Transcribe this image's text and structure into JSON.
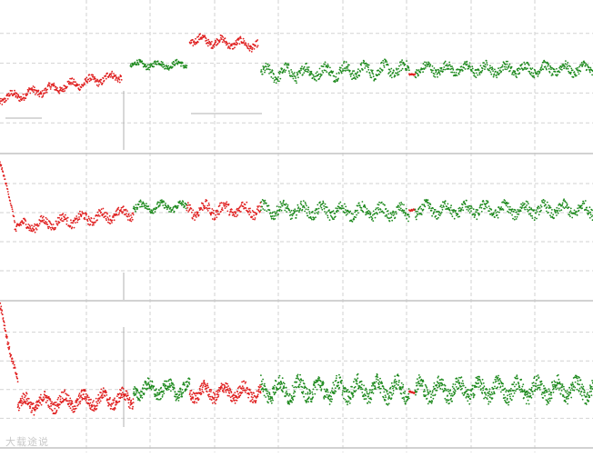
{
  "watermark": "大载途说",
  "colors": {
    "background": "#ffffff",
    "grid": "#d2d2d2",
    "panel_border": "#c4c4c4",
    "guide_line": "#b0b0b0",
    "red": "#e02020",
    "green": "#1e8a1e"
  },
  "chart_data": [
    {
      "type": "scatter",
      "title": "",
      "x_domain": [
        0,
        100
      ],
      "y_domain": [
        0,
        100
      ],
      "grid": true,
      "segments": [
        {
          "color": "red",
          "x": [
            0,
            20.5
          ],
          "start": 36,
          "end": 52,
          "noise": 4
        },
        {
          "color": "green",
          "x": [
            22,
            31.5
          ],
          "start": 59,
          "end": 59,
          "noise": 3
        },
        {
          "color": "red",
          "x": [
            32,
            43.5
          ],
          "start": 76,
          "end": 72,
          "noise": 4
        },
        {
          "color": "green",
          "x": [
            44,
            69
          ],
          "start": 53,
          "end": 56,
          "noise": 6
        },
        {
          "color": "red",
          "x": [
            69,
            70
          ],
          "start": 53,
          "end": 53,
          "noise": 1
        },
        {
          "color": "green",
          "x": [
            70,
            100
          ],
          "start": 56,
          "end": 56,
          "noise": 5
        }
      ]
    },
    {
      "type": "scatter",
      "title": "",
      "x_domain": [
        0,
        100
      ],
      "y_domain": [
        0,
        100
      ],
      "grid": true,
      "segments": [
        {
          "color": "red",
          "x": [
            0,
            2.5
          ],
          "start": 96,
          "end": 54,
          "noise": 2
        },
        {
          "color": "red",
          "x": [
            2.5,
            22.5
          ],
          "start": 50,
          "end": 60,
          "noise": 5
        },
        {
          "color": "green",
          "x": [
            22.5,
            31.5
          ],
          "start": 64,
          "end": 64,
          "noise": 4
        },
        {
          "color": "red",
          "x": [
            31.5,
            44
          ],
          "start": 62,
          "end": 62,
          "noise": 6
        },
        {
          "color": "green",
          "x": [
            44,
            69
          ],
          "start": 62,
          "end": 60,
          "noise": 6
        },
        {
          "color": "red",
          "x": [
            69,
            70
          ],
          "start": 62,
          "end": 62,
          "noise": 1
        },
        {
          "color": "green",
          "x": [
            70,
            100
          ],
          "start": 62,
          "end": 62,
          "noise": 6
        }
      ]
    },
    {
      "type": "scatter",
      "title": "",
      "x_domain": [
        0,
        100
      ],
      "y_domain": [
        0,
        100
      ],
      "grid": true,
      "segments": [
        {
          "color": "red",
          "x": [
            0,
            3
          ],
          "start": 98,
          "end": 45,
          "noise": 4
        },
        {
          "color": "red",
          "x": [
            3,
            22.5
          ],
          "start": 30,
          "end": 34,
          "noise": 7
        },
        {
          "color": "green",
          "x": [
            22.5,
            32
          ],
          "start": 40,
          "end": 40,
          "noise": 7
        },
        {
          "color": "red",
          "x": [
            32,
            44
          ],
          "start": 38,
          "end": 38,
          "noise": 7
        },
        {
          "color": "green",
          "x": [
            44,
            69
          ],
          "start": 40,
          "end": 40,
          "noise": 9
        },
        {
          "color": "red",
          "x": [
            69,
            70
          ],
          "start": 38,
          "end": 38,
          "noise": 1
        },
        {
          "color": "green",
          "x": [
            70,
            100
          ],
          "start": 40,
          "end": 40,
          "noise": 9
        }
      ]
    }
  ]
}
